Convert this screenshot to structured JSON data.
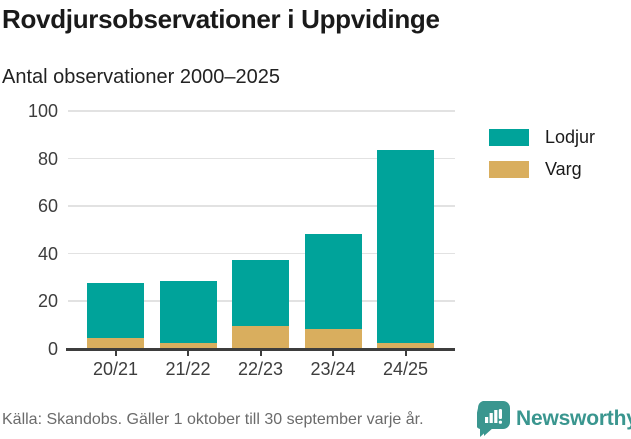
{
  "header": {
    "title": "Rovdjursobservationer i Uppvidinge",
    "subtitle": "Antal observationer 2000–2025"
  },
  "chart_data": {
    "type": "bar",
    "stacked": true,
    "title": "Rovdjursobservationer i Uppvidinge",
    "subtitle": "Antal observationer 2000–2025",
    "categories": [
      "20/21",
      "21/22",
      "22/23",
      "23/24",
      "24/25"
    ],
    "series": [
      {
        "name": "Lodjur",
        "color": "#00a39a",
        "values": [
          23,
          26,
          28,
          40,
          81
        ]
      },
      {
        "name": "Varg",
        "color": "#d9ae5e",
        "values": [
          4,
          2,
          9,
          8,
          2
        ]
      }
    ],
    "totals": [
      27,
      28,
      37,
      48,
      83
    ],
    "xlabel": "",
    "ylabel": "",
    "ylim": [
      0,
      100
    ],
    "yticks": [
      0,
      20,
      40,
      60,
      80,
      100
    ],
    "grid": true,
    "legend_position": "right"
  },
  "footer": {
    "source": "Källa: Skandobs. Gäller 1 oktober till 30 september varje år.",
    "brand": "Newsworthy"
  },
  "icons": {
    "brand_logo": "newsworthy-speech-bubble-bar-chart"
  },
  "colors": {
    "lodjur": "#00a39a",
    "varg": "#d9ae5e",
    "axis": "#3d3d3d",
    "gridline": "#e2e2e2",
    "brand_teal": "#3a968f",
    "title_text": "#1a1a1a",
    "source_text": "#6b6b6b"
  }
}
